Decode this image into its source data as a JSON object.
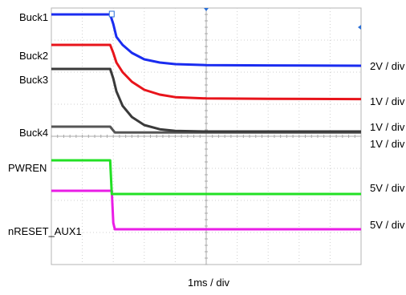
{
  "chart_data": {
    "type": "line",
    "title": "",
    "xlabel": "1ms / div",
    "ylabel": "",
    "x_divisions": 10,
    "y_divisions": 8,
    "grid": true,
    "x_unit": "div",
    "xlim": [
      0,
      10
    ],
    "ylim": [
      0,
      8
    ],
    "series": [
      {
        "name": "Buck1",
        "color": "#1a2cf0",
        "scale": "2V / div",
        "x": [
          0,
          1.9,
          2.0,
          2.1,
          2.3,
          2.6,
          3.0,
          3.5,
          4.0,
          5.0,
          7.0,
          10.0
        ],
        "y": [
          7.8,
          7.8,
          7.5,
          7.1,
          6.85,
          6.6,
          6.4,
          6.3,
          6.25,
          6.22,
          6.21,
          6.2
        ]
      },
      {
        "name": "Buck2",
        "color": "#e8141b",
        "scale": "1V / div",
        "x": [
          0,
          1.9,
          2.0,
          2.1,
          2.3,
          2.6,
          3.0,
          3.5,
          4.0,
          5.0,
          7.0,
          10.0
        ],
        "y": [
          6.85,
          6.85,
          6.6,
          6.3,
          6.0,
          5.7,
          5.45,
          5.3,
          5.22,
          5.18,
          5.17,
          5.16
        ]
      },
      {
        "name": "Buck3",
        "color": "#3a3a3a",
        "scale": "1V / div",
        "x": [
          0,
          1.9,
          2.0,
          2.1,
          2.3,
          2.6,
          3.0,
          3.5,
          4.0,
          5.0,
          7.0,
          10.0
        ],
        "y": [
          6.1,
          6.1,
          5.8,
          5.4,
          4.95,
          4.6,
          4.35,
          4.22,
          4.17,
          4.15,
          4.15,
          4.15
        ]
      },
      {
        "name": "Buck4",
        "color": "#555555",
        "scale": "1V / div",
        "x": [
          0,
          1.9,
          2.05,
          10.0
        ],
        "y": [
          4.3,
          4.3,
          4.12,
          4.12
        ]
      },
      {
        "name": "PWREN",
        "color": "#22e024",
        "scale": "5V / div",
        "x": [
          0,
          1.9,
          1.95,
          10.0
        ],
        "y": [
          3.25,
          3.25,
          2.2,
          2.2
        ]
      },
      {
        "name": "nRESET_AUX1",
        "color": "#ea1de6",
        "scale": "5V / div",
        "x": [
          0,
          1.9,
          1.95,
          2.0,
          2.05,
          10.0
        ],
        "y": [
          2.3,
          2.3,
          2.3,
          1.3,
          1.1,
          1.1
        ]
      }
    ],
    "scale_labels": [
      "2V / div",
      "1V / div",
      "1V / div",
      "1V / div",
      "5V / div",
      "5V / div"
    ]
  }
}
